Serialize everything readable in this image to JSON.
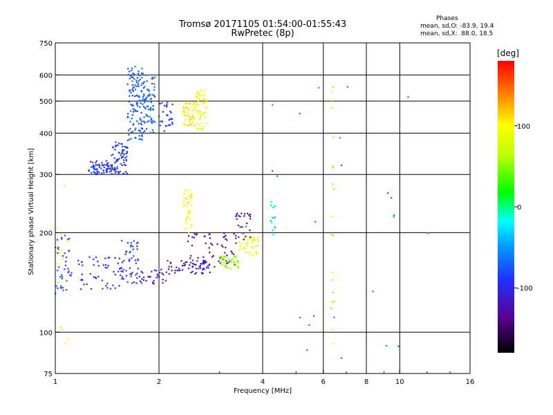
{
  "header": {
    "title_line1": "Tromsø 20171105 01:54:00-01:55:43",
    "title_line2": "RwPretec (8p)"
  },
  "stats": {
    "heading": "Phases",
    "line_o": "mean, sd,O: -83.9, 19.4",
    "line_x": "mean, sd,X:  88.0, 18.5"
  },
  "colorbar": {
    "unit_label": "[deg]",
    "ticks": [
      {
        "value": 100,
        "label": "100"
      },
      {
        "value": 0,
        "label": "0"
      },
      {
        "value": -100,
        "label": "-100"
      }
    ],
    "range": [
      -180,
      180
    ]
  },
  "chart_data": {
    "type": "scatter",
    "title": "Tromsø 20171105 01:54:00-01:55:43",
    "subtitle": "RwPretec (8p)",
    "xlabel": "Frequency [MHz]",
    "ylabel": "Stationary phase Virtual Height [km]",
    "x_scale": "log",
    "y_scale": "log",
    "xlim": [
      1,
      16
    ],
    "ylim": [
      75,
      750
    ],
    "x_ticks": [
      {
        "value": 1,
        "label": "1"
      },
      {
        "value": 2,
        "label": "2"
      },
      {
        "value": 4,
        "label": "4"
      },
      {
        "value": 6,
        "label": "6"
      },
      {
        "value": 8,
        "label": "8"
      },
      {
        "value": 10,
        "label": "10"
      },
      {
        "value": 16,
        "label": "16"
      }
    ],
    "y_ticks": [
      {
        "value": 75,
        "label": "75"
      },
      {
        "value": 100,
        "label": "100"
      },
      {
        "value": 200,
        "label": "200"
      },
      {
        "value": 300,
        "label": "300"
      },
      {
        "value": 400,
        "label": "400"
      },
      {
        "value": 500,
        "label": "500"
      },
      {
        "value": 600,
        "label": "600"
      },
      {
        "value": 750,
        "label": "750"
      }
    ],
    "grid": true,
    "color_by": "phase_deg",
    "traces": [
      {
        "x_range": [
          1.25,
          1.45
        ],
        "y_range": [
          300,
          330
        ],
        "phase": -90,
        "n": 60
      },
      {
        "x_range": [
          1.45,
          1.62
        ],
        "y_range": [
          300,
          380
        ],
        "phase": -88,
        "n": 80
      },
      {
        "x_range": [
          1.62,
          1.8
        ],
        "y_range": [
          380,
          640
        ],
        "phase": -75,
        "n": 120
      },
      {
        "x_range": [
          1.8,
          1.95
        ],
        "y_range": [
          400,
          600
        ],
        "phase": -72,
        "n": 70
      },
      {
        "x_range": [
          2.0,
          2.2
        ],
        "y_range": [
          400,
          500
        ],
        "phase": -85,
        "n": 30
      },
      {
        "x_range": [
          2.35,
          2.55
        ],
        "y_range": [
          420,
          500
        ],
        "phase": 105,
        "n": 60
      },
      {
        "x_range": [
          2.55,
          2.75
        ],
        "y_range": [
          410,
          540
        ],
        "phase": 95,
        "n": 60
      },
      {
        "x_range": [
          1.0,
          1.12
        ],
        "y_range": [
          130,
          200
        ],
        "phase": -80,
        "n": 40
      },
      {
        "x_range": [
          1.15,
          1.55
        ],
        "y_range": [
          135,
          170
        ],
        "phase": -95,
        "n": 50
      },
      {
        "x_range": [
          1.55,
          1.75
        ],
        "y_range": [
          140,
          190
        ],
        "phase": -90,
        "n": 50
      },
      {
        "x_range": [
          1.75,
          2.1
        ],
        "y_range": [
          140,
          155
        ],
        "phase": -105,
        "n": 30
      },
      {
        "x_range": [
          2.1,
          2.9
        ],
        "y_range": [
          150,
          165
        ],
        "phase": -110,
        "n": 60
      },
      {
        "x_range": [
          2.4,
          3.4
        ],
        "y_range": [
          160,
          200
        ],
        "phase": -130,
        "n": 60
      },
      {
        "x_range": [
          3.0,
          3.4
        ],
        "y_range": [
          155,
          170
        ],
        "phase": 55,
        "n": 40
      },
      {
        "x_range": [
          2.35,
          2.5
        ],
        "y_range": [
          200,
          270
        ],
        "phase": 100,
        "n": 40
      },
      {
        "x_range": [
          3.4,
          3.9
        ],
        "y_range": [
          170,
          195
        ],
        "phase": 95,
        "n": 40
      },
      {
        "x_range": [
          3.3,
          3.7
        ],
        "y_range": [
          190,
          230
        ],
        "phase": -120,
        "n": 25
      },
      {
        "x_range": [
          4.2,
          4.35
        ],
        "y_range": [
          195,
          250
        ],
        "phase": -30,
        "n": 15
      },
      {
        "x_range": [
          6.3,
          6.45
        ],
        "y_range": [
          90,
          580
        ],
        "phase": 115,
        "n": 20
      },
      {
        "x_range": [
          1.0,
          1.1
        ],
        "y_range": [
          92,
          280
        ],
        "phase": 100,
        "n": 15
      },
      {
        "x_range": [
          3.5,
          12.5
        ],
        "y_range": [
          75,
          620
        ],
        "phase": -60,
        "n": 25
      }
    ]
  }
}
